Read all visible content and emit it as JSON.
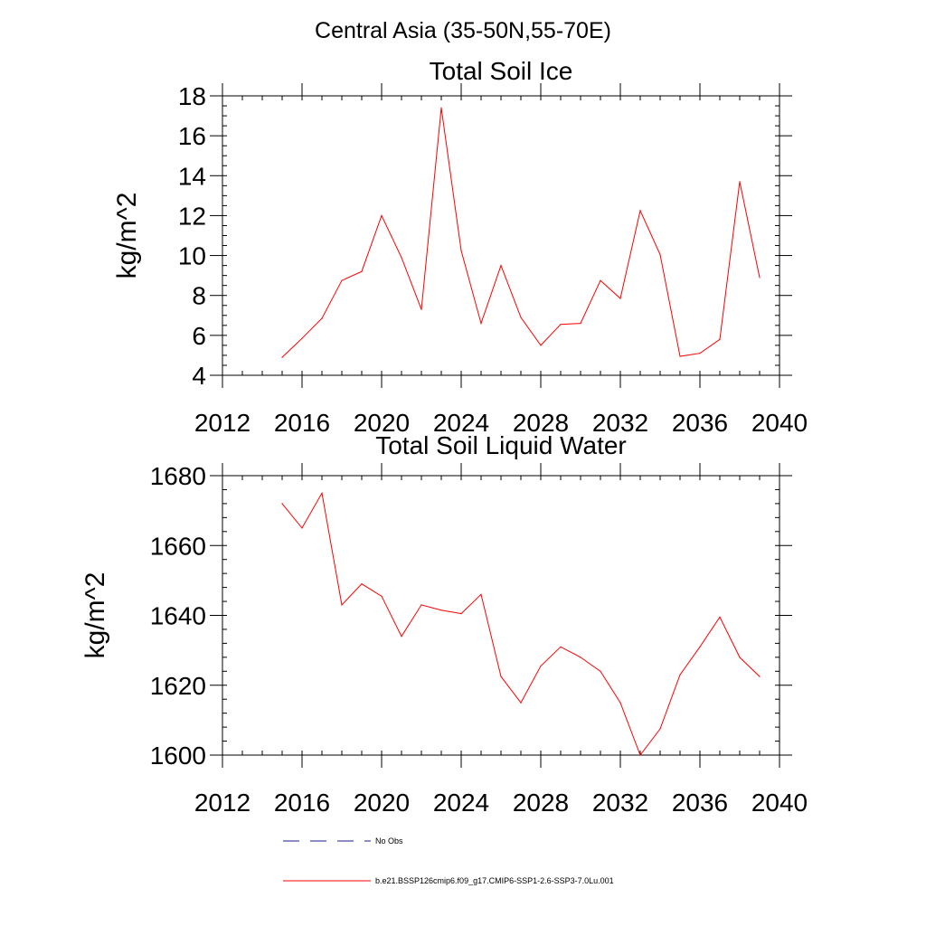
{
  "figure": {
    "title": "Central Asia (35-50N,55-70E)"
  },
  "legend": {
    "items": [
      {
        "label": "No Obs",
        "style": "dashed",
        "color": "#1a1a8c"
      },
      {
        "label": "b.e21.BSSP126cmip6.f09_g17.CMIP6-SSP1-2.6-SSP3-7.0Lu.001",
        "style": "solid",
        "color": "#ff0000"
      }
    ]
  },
  "chart_data": [
    {
      "type": "line",
      "title": "Total Soil Ice",
      "xlabel": "",
      "ylabel": "kg/m^2",
      "xlim": [
        2012,
        2040
      ],
      "ylim": [
        4,
        18
      ],
      "xticks": [
        2012,
        2016,
        2020,
        2024,
        2028,
        2032,
        2036,
        2040
      ],
      "yticks": [
        4,
        6,
        8,
        10,
        12,
        14,
        16,
        18
      ],
      "grid": false,
      "series": [
        {
          "name": "b.e21.BSSP126cmip6.f09_g17.CMIP6-SSP1-2.6-SSP3-7.0Lu.001",
          "color": "#ff0000",
          "x": [
            2015,
            2016,
            2017,
            2018,
            2019,
            2020,
            2021,
            2022,
            2023,
            2024,
            2025,
            2026,
            2027,
            2028,
            2029,
            2030,
            2031,
            2032,
            2033,
            2034,
            2035,
            2036,
            2037,
            2038,
            2039
          ],
          "y": [
            4.9,
            5.85,
            6.85,
            8.75,
            9.2,
            12.0,
            9.9,
            7.3,
            17.4,
            10.25,
            6.6,
            9.5,
            6.9,
            5.5,
            6.55,
            6.6,
            8.75,
            7.85,
            12.25,
            10.05,
            4.95,
            5.1,
            5.8,
            13.7,
            8.9
          ]
        }
      ]
    },
    {
      "type": "line",
      "title": "Total Soil Liquid Water",
      "xlabel": "",
      "ylabel": "kg/m^2",
      "xlim": [
        2012,
        2040
      ],
      "ylim": [
        1600,
        1680
      ],
      "xticks": [
        2012,
        2016,
        2020,
        2024,
        2028,
        2032,
        2036,
        2040
      ],
      "yticks": [
        1600,
        1620,
        1640,
        1660,
        1680
      ],
      "grid": false,
      "series": [
        {
          "name": "b.e21.BSSP126cmip6.f09_g17.CMIP6-SSP1-2.6-SSP3-7.0Lu.001",
          "color": "#ff0000",
          "x": [
            2015,
            2016,
            2017,
            2018,
            2019,
            2020,
            2021,
            2022,
            2023,
            2024,
            2025,
            2026,
            2027,
            2028,
            2029,
            2030,
            2031,
            2032,
            2033,
            2034,
            2035,
            2036,
            2037,
            2038,
            2039
          ],
          "y": [
            1672,
            1665,
            1675,
            1643,
            1649,
            1645.5,
            1634,
            1643,
            1641.5,
            1640.5,
            1646,
            1622.5,
            1615,
            1625.5,
            1631,
            1628,
            1624,
            1615,
            1600,
            1607.5,
            1623,
            1631,
            1639.5,
            1628,
            1622.5
          ]
        }
      ]
    }
  ]
}
